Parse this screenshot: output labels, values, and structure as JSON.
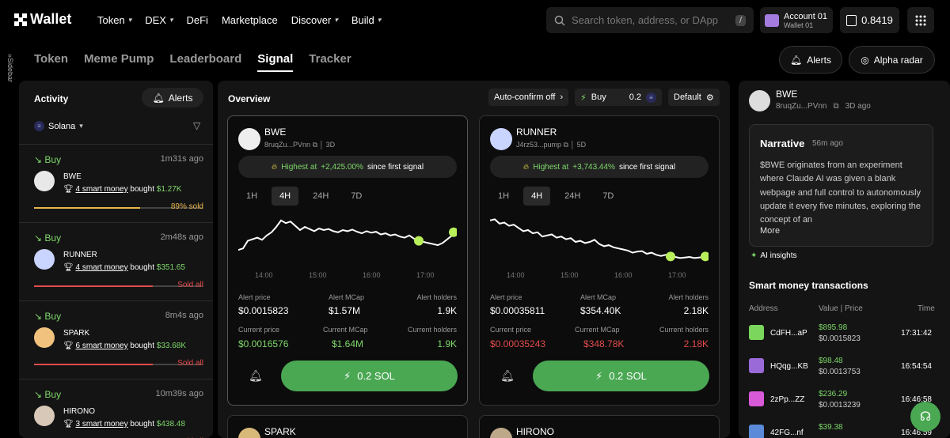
{
  "header": {
    "logo": "Wallet",
    "nav": [
      {
        "label": "Token",
        "dropdown": true
      },
      {
        "label": "DEX",
        "dropdown": true
      },
      {
        "label": "DeFi",
        "dropdown": false
      },
      {
        "label": "Marketplace",
        "dropdown": false
      },
      {
        "label": "Discover",
        "dropdown": true
      },
      {
        "label": "Build",
        "dropdown": true
      }
    ],
    "search_placeholder": "Search token, address, or DApp",
    "search_shortcut": "/",
    "account_name": "Account 01",
    "account_wallet": "Wallet 01",
    "balance": "0.8419"
  },
  "sidebar_label": "Sidebar",
  "tabs": [
    {
      "label": "Token",
      "active": false
    },
    {
      "label": "Meme Pump",
      "active": false
    },
    {
      "label": "Leaderboard",
      "active": false
    },
    {
      "label": "Signal",
      "active": true
    },
    {
      "label": "Tracker",
      "active": false
    }
  ],
  "top_buttons": {
    "alerts": "Alerts",
    "alpha": "Alpha radar"
  },
  "activity": {
    "title": "Activity",
    "alerts_btn": "Alerts",
    "chain": "Solana",
    "items": [
      {
        "action": "Buy",
        "time": "1m31s ago",
        "name": "BWE",
        "smart": "4 smart money",
        "bought": "bought",
        "amount": "$1.27K",
        "status": "89% sold",
        "progress": 0.89,
        "status_color": "#e8b64a"
      },
      {
        "action": "Buy",
        "time": "2m48s ago",
        "name": "RUNNER",
        "smart": "4 smart money",
        "bought": "bought",
        "amount": "$351.65",
        "status": "Sold all",
        "progress": 1.0,
        "status_color": "#e24b4b"
      },
      {
        "action": "Buy",
        "time": "8m4s ago",
        "name": "SPARK",
        "smart": "6 smart money",
        "bought": "bought",
        "amount": "$33.68K",
        "status": "Sold all",
        "progress": 1.0,
        "status_color": "#e24b4b"
      },
      {
        "action": "Buy",
        "time": "10m39s ago",
        "name": "HIRONO",
        "smart": "3 smart money",
        "bought": "bought",
        "amount": "$438.48",
        "status": "Sold all",
        "progress": 1.0,
        "status_color": "#e24b4b"
      }
    ]
  },
  "overview": {
    "title": "Overview",
    "auto_confirm": "Auto-confirm off",
    "buy_label": "Buy",
    "buy_amount": "0.2",
    "default_label": "Default",
    "cards": [
      {
        "name": "BWE",
        "addr": "8ruqZu...PVnn",
        "age": "3D",
        "highlight_prefix": "Highest at",
        "highlight_value": "+2,425.00%",
        "highlight_suffix": "since first signal",
        "timeframes": [
          "1H",
          "4H",
          "24H",
          "7D"
        ],
        "active_tf": "4H",
        "x_ticks": [
          "14:00",
          "15:00",
          "16:00",
          "17:00"
        ],
        "series": [
          0.35,
          0.38,
          0.52,
          0.55,
          0.58,
          0.54,
          0.62,
          0.68,
          0.78,
          0.9,
          0.85,
          0.88,
          0.8,
          0.72,
          0.78,
          0.74,
          0.7,
          0.75,
          0.72,
          0.74,
          0.7,
          0.68,
          0.72,
          0.7,
          0.73,
          0.69,
          0.66,
          0.7,
          0.67,
          0.69,
          0.64,
          0.66,
          0.62,
          0.64,
          0.6,
          0.58,
          0.62,
          0.56,
          0.52,
          0.5,
          0.48,
          0.46,
          0.44,
          0.48,
          0.55,
          0.62,
          0.68
        ],
        "alert_price": "$0.0015823",
        "alert_mcap": "$1.57M",
        "alert_holders": "1.9K",
        "cur_price": "$0.0016576",
        "cur_mcap": "$1.64M",
        "cur_holders": "1.9K",
        "cur_color": "#7ed86a",
        "buy_btn": "0.2 SOL"
      },
      {
        "name": "RUNNER",
        "addr": "J4rz53...pump",
        "age": "5D",
        "highlight_prefix": "Highest at",
        "highlight_value": "+3,743.44%",
        "highlight_suffix": "since first signal",
        "timeframes": [
          "1H",
          "4H",
          "24H",
          "7D"
        ],
        "active_tf": "4H",
        "x_ticks": [
          "14:00",
          "15:00",
          "16:00",
          "17:00"
        ],
        "series": [
          0.9,
          0.92,
          0.84,
          0.86,
          0.8,
          0.82,
          0.76,
          0.7,
          0.72,
          0.66,
          0.68,
          0.6,
          0.62,
          0.64,
          0.58,
          0.6,
          0.55,
          0.57,
          0.5,
          0.52,
          0.48,
          0.5,
          0.54,
          0.46,
          0.42,
          0.44,
          0.4,
          0.38,
          0.36,
          0.34,
          0.3,
          0.32,
          0.33,
          0.28,
          0.3,
          0.26,
          0.24,
          0.26,
          0.23,
          0.22,
          0.2,
          0.21,
          0.22,
          0.2,
          0.21,
          0.22,
          0.23
        ],
        "alert_price": "$0.00035811",
        "alert_mcap": "$354.40K",
        "alert_holders": "2.18K",
        "cur_price": "$0.00035243",
        "cur_mcap": "$348.78K",
        "cur_holders": "2.18K",
        "cur_color": "#e24b4b",
        "buy_btn": "0.2 SOL"
      }
    ],
    "stat_labels": {
      "alert_price": "Alert price",
      "alert_mcap": "Alert MCap",
      "alert_holders": "Alert holders",
      "cur_price": "Current price",
      "cur_mcap": "Current MCap",
      "cur_holders": "Current holders"
    },
    "next_cards": [
      "SPARK",
      "HIRONO"
    ]
  },
  "right": {
    "token": "BWE",
    "addr": "8ruqZu...PVnn",
    "age": "3D ago",
    "narrative_title": "Narrative",
    "narrative_ago": "56m ago",
    "narrative_body": "$BWE originates from an experiment where Claude AI was given a blank webpage and full control to autonomously update it every five minutes, exploring the concept of an",
    "more": "More",
    "ai_insights": "AI insights",
    "smt_title": "Smart money transactions",
    "cols": {
      "address": "Address",
      "value": "Value | Price",
      "time": "Time"
    },
    "rows": [
      {
        "addr": "CdFH...aP",
        "value": "$895.98",
        "price": "$0.0015823",
        "time": "17:31:42",
        "color": "#7ad65c"
      },
      {
        "addr": "HQqg...KB",
        "value": "$98.48",
        "price": "$0.0013753",
        "time": "16:54:54",
        "color": "#9a6ad8"
      },
      {
        "addr": "2zPp...ZZ",
        "value": "$236.29",
        "price": "$0.0013239",
        "time": "16:46:58",
        "color": "#d85ad8"
      },
      {
        "addr": "42FG...nf",
        "value": "$39.38",
        "price": "",
        "time": "16:46:59",
        "color": "#5a8ad8"
      }
    ]
  }
}
